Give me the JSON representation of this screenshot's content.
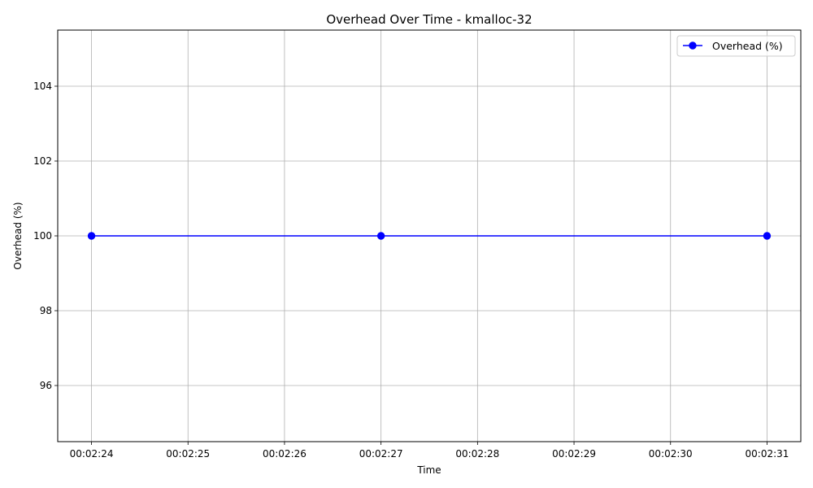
{
  "chart_data": {
    "type": "line",
    "title": "Overhead Over Time - kmalloc-32",
    "xlabel": "Time",
    "ylabel": "Overhead (%)",
    "x": [
      "00:02:24",
      "00:02:27",
      "00:02:31"
    ],
    "x_ticks": [
      "00:02:24",
      "00:02:25",
      "00:02:26",
      "00:02:27",
      "00:02:28",
      "00:02:29",
      "00:02:30",
      "00:02:31"
    ],
    "xlim": [
      "00:02:23.65",
      "00:02:31.35"
    ],
    "y_ticks": [
      96,
      98,
      100,
      102,
      104
    ],
    "ylim": [
      94.5,
      105.5
    ],
    "grid": true,
    "legend_position": "top-right",
    "series": [
      {
        "name": "Overhead (%)",
        "values": [
          100,
          100,
          100
        ],
        "color": "#0000ff",
        "marker": "circle"
      }
    ]
  }
}
